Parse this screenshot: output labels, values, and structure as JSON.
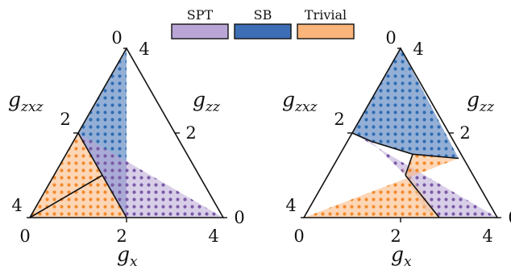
{
  "chart_data": {
    "type": "ternary-phase-diagram",
    "legend": [
      {
        "label": "SPT",
        "color": "#b9a6d6"
      },
      {
        "label": "SB",
        "color": "#3d6eb5"
      },
      {
        "label": "Trivial",
        "color": "#fbb47a"
      }
    ],
    "dot_colors": {
      "SPT": "#7a5aa6",
      "SB": "#2f6db3",
      "Trivial": "#f28a2e"
    },
    "axes": {
      "bottom": {
        "var": "g",
        "sub": "x",
        "ticks": [
          "0",
          "2",
          "4"
        ]
      },
      "left": {
        "var": "g",
        "sub": "zxz",
        "ticks": [
          "4",
          "2",
          "0"
        ]
      },
      "right": {
        "var": "g",
        "sub": "zz",
        "ticks": [
          "4",
          "2",
          "0"
        ]
      }
    },
    "panels": [
      {
        "phases": {
          "SB": [
            [
              0,
              4
            ],
            [
              0,
              2
            ],
            [
              2,
              0
            ]
          ],
          "SPT": [
            [
              0,
              2
            ],
            [
              4,
              0
            ],
            [
              2,
              0
            ]
          ],
          "Trivial": [
            [
              2,
              0
            ],
            [
              0,
              2
            ],
            [
              0,
              0
            ]
          ]
        },
        "fuzzy_band": [
          [
            0.75,
            1.25
          ],
          [
            1.25,
            0.75
          ],
          [
            2,
            0
          ],
          [
            2,
            0
          ]
        ],
        "boundaries": [
          [
            [
              0,
              2
            ],
            [
              2,
              0
            ]
          ],
          [
            [
              1,
              1
            ],
            [
              0,
              0
            ]
          ]
        ]
      },
      {
        "phases": {
          "SB": [
            [
              0,
              4
            ],
            [
              0,
              2
            ],
            [
              0.5,
              1.8
            ],
            [
              1.5,
              1.5
            ],
            [
              2.5,
              1.4
            ]
          ],
          "SPT": [
            [
              0,
              2
            ],
            [
              4,
              0
            ],
            [
              2.8,
              0
            ],
            [
              1.6,
              1.0
            ],
            [
              0.5,
              1.8
            ]
          ],
          "Trivial": [
            [
              2.8,
              0
            ],
            [
              0,
              0
            ],
            [
              2.5,
              1.4
            ],
            [
              1.5,
              1.5
            ],
            [
              1.6,
              1.0
            ]
          ]
        },
        "fuzzy_band": [
          [
            1.4,
            1.2
          ],
          [
            1.7,
            1.0
          ],
          [
            2.7,
            0.1
          ],
          [
            2.45,
            0.15
          ]
        ],
        "boundaries": [
          [
            [
              0,
              2
            ],
            [
              0.5,
              1.8
            ],
            [
              1.5,
              1.5
            ],
            [
              2.5,
              1.4
            ]
          ],
          [
            [
              1.6,
              1.0
            ],
            [
              1.5,
              1.5
            ]
          ],
          [
            [
              1.6,
              1.0
            ],
            [
              2.8,
              0
            ]
          ]
        ]
      }
    ]
  }
}
